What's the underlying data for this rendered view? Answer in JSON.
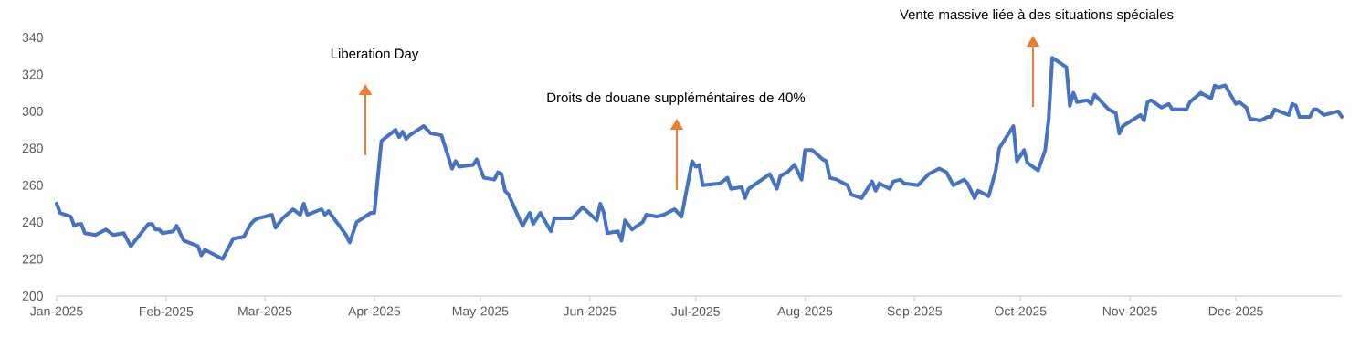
{
  "chart_data": {
    "type": "line",
    "color": "#4472c4",
    "line_style": "solid",
    "x": [
      "2025-01-01",
      "2025-01-02",
      "2025-01-05",
      "2025-01-06",
      "2025-01-07",
      "2025-01-08",
      "2025-01-09",
      "2025-01-12",
      "2025-01-15",
      "2025-01-17",
      "2025-01-20",
      "2025-01-22",
      "2025-01-27",
      "2025-01-28",
      "2025-01-29",
      "2025-01-30",
      "2025-01-31",
      "2025-02-03",
      "2025-02-04",
      "2025-02-06",
      "2025-02-10",
      "2025-02-11",
      "2025-02-12",
      "2025-02-17",
      "2025-02-20",
      "2025-02-23",
      "2025-02-25",
      "2025-02-26",
      "2025-02-27",
      "2025-03-03",
      "2025-03-04",
      "2025-03-06",
      "2025-03-09",
      "2025-03-11",
      "2025-03-12",
      "2025-03-13",
      "2025-03-17",
      "2025-03-18",
      "2025-03-19",
      "2025-03-24",
      "2025-03-25",
      "2025-03-27",
      "2025-03-31",
      "2025-04-01",
      "2025-04-03",
      "2025-04-07",
      "2025-04-08",
      "2025-04-09",
      "2025-04-10",
      "2025-04-11",
      "2025-04-15",
      "2025-04-17",
      "2025-04-20",
      "2025-04-23",
      "2025-04-24",
      "2025-04-25",
      "2025-04-29",
      "2025-04-30",
      "2025-05-02",
      "2025-05-05",
      "2025-05-06",
      "2025-05-07",
      "2025-05-08",
      "2025-05-09",
      "2025-05-12",
      "2025-05-13",
      "2025-05-15",
      "2025-05-16",
      "2025-05-18",
      "2025-05-21",
      "2025-05-22",
      "2025-05-27",
      "2025-05-30",
      "2025-06-03",
      "2025-06-04",
      "2025-06-05",
      "2025-06-06",
      "2025-06-09",
      "2025-06-10",
      "2025-06-11",
      "2025-06-13",
      "2025-06-16",
      "2025-06-17",
      "2025-06-20",
      "2025-06-22",
      "2025-06-25",
      "2025-06-27",
      "2025-06-30",
      "2025-07-01",
      "2025-07-02",
      "2025-07-03",
      "2025-07-08",
      "2025-07-10",
      "2025-07-11",
      "2025-07-14",
      "2025-07-15",
      "2025-07-16",
      "2025-07-22",
      "2025-07-24",
      "2025-07-25",
      "2025-07-27",
      "2025-07-29",
      "2025-07-31",
      "2025-08-01",
      "2025-08-03",
      "2025-08-06",
      "2025-08-07",
      "2025-08-08",
      "2025-08-10",
      "2025-08-12",
      "2025-08-13",
      "2025-08-14",
      "2025-08-17",
      "2025-08-20",
      "2025-08-21",
      "2025-08-22",
      "2025-08-25",
      "2025-08-26",
      "2025-08-28",
      "2025-08-29",
      "2025-09-02",
      "2025-09-05",
      "2025-09-08",
      "2025-09-10",
      "2025-09-12",
      "2025-09-15",
      "2025-09-16",
      "2025-09-18",
      "2025-09-19",
      "2025-09-22",
      "2025-09-23",
      "2025-09-24",
      "2025-09-25",
      "2025-09-29",
      "2025-09-30",
      "2025-10-02",
      "2025-10-03",
      "2025-10-06",
      "2025-10-08",
      "2025-10-09",
      "2025-10-10",
      "2025-10-14",
      "2025-10-15",
      "2025-10-16",
      "2025-10-17",
      "2025-10-20",
      "2025-10-21",
      "2025-10-22",
      "2025-10-26",
      "2025-10-28",
      "2025-10-29",
      "2025-10-30",
      "2025-11-04",
      "2025-11-05",
      "2025-11-06",
      "2025-11-07",
      "2025-11-10",
      "2025-11-12",
      "2025-11-13",
      "2025-11-17",
      "2025-11-18",
      "2025-11-21",
      "2025-11-24",
      "2025-11-25",
      "2025-11-26",
      "2025-11-28",
      "2025-12-01",
      "2025-12-02",
      "2025-12-04",
      "2025-12-05",
      "2025-12-08",
      "2025-12-10",
      "2025-12-11",
      "2025-12-12",
      "2025-12-16",
      "2025-12-17",
      "2025-12-18",
      "2025-12-19",
      "2025-12-22",
      "2025-12-23",
      "2025-12-24",
      "2025-12-26",
      "2025-12-30",
      "2025-12-31"
    ],
    "values": [
      250,
      245,
      243,
      238,
      239,
      239,
      234,
      233,
      236,
      233,
      234,
      227,
      239,
      239,
      236,
      236,
      234,
      235,
      238,
      230,
      227,
      222,
      225,
      220,
      231,
      232,
      239,
      241,
      242,
      244,
      237,
      242,
      247,
      244,
      250,
      244,
      247,
      244,
      246,
      233,
      229,
      240,
      245,
      245,
      284,
      290,
      286,
      289,
      285,
      287,
      292,
      288,
      287,
      269,
      273,
      270,
      271,
      274,
      264,
      263,
      267,
      266,
      257,
      255,
      242,
      238,
      245,
      239,
      245,
      235,
      242,
      242,
      248,
      241,
      250,
      245,
      234,
      235,
      230,
      241,
      236,
      240,
      244,
      243,
      244,
      247,
      243,
      273,
      270,
      271,
      260,
      261,
      264,
      258,
      259,
      253,
      258,
      266,
      258,
      265,
      267,
      271,
      263,
      279,
      279,
      274,
      273,
      264,
      263,
      261,
      260,
      255,
      253,
      262,
      257,
      261,
      258,
      262,
      263,
      261,
      260,
      266,
      269,
      267,
      260,
      263,
      261,
      253,
      257,
      254,
      261,
      268,
      280,
      292,
      273,
      279,
      272,
      268,
      279,
      296,
      329,
      324,
      303,
      310,
      305,
      306,
      304,
      309,
      301,
      299,
      288,
      292,
      298,
      295,
      305,
      306,
      302,
      304,
      301,
      301,
      305,
      310,
      307,
      314,
      313,
      314,
      304,
      305,
      302,
      296,
      295,
      297,
      297,
      301,
      298,
      304,
      303,
      297,
      297,
      301,
      301,
      298,
      300,
      297
    ],
    "xlim": [
      "2025-01-01",
      "2025-12-31"
    ],
    "xticks": [
      {
        "value": "2025-01-01",
        "label": "Jan-2025"
      },
      {
        "value": "2025-02-01",
        "label": "Feb-2025"
      },
      {
        "value": "2025-03-01",
        "label": "Mar-2025"
      },
      {
        "value": "2025-04-01",
        "label": "Apr-2025"
      },
      {
        "value": "2025-05-01",
        "label": "May-2025"
      },
      {
        "value": "2025-06-01",
        "label": "Jun-2025"
      },
      {
        "value": "2025-07-01",
        "label": "Jul-2025"
      },
      {
        "value": "2025-08-01",
        "label": "Aug-2025"
      },
      {
        "value": "2025-09-01",
        "label": "Sep-2025"
      },
      {
        "value": "2025-10-01",
        "label": "Oct-2025"
      },
      {
        "value": "2025-11-01",
        "label": "Nov-2025"
      },
      {
        "value": "2025-12-01",
        "label": "Dec-2025"
      }
    ],
    "ylim": [
      200,
      340
    ],
    "yticks": [
      200,
      220,
      240,
      260,
      280,
      300,
      320,
      340
    ],
    "annotations": [
      "Liberation Day",
      "Droits de douane suppléméntaires de 40%",
      "Vente massive liée à des situations spéciales"
    ]
  }
}
